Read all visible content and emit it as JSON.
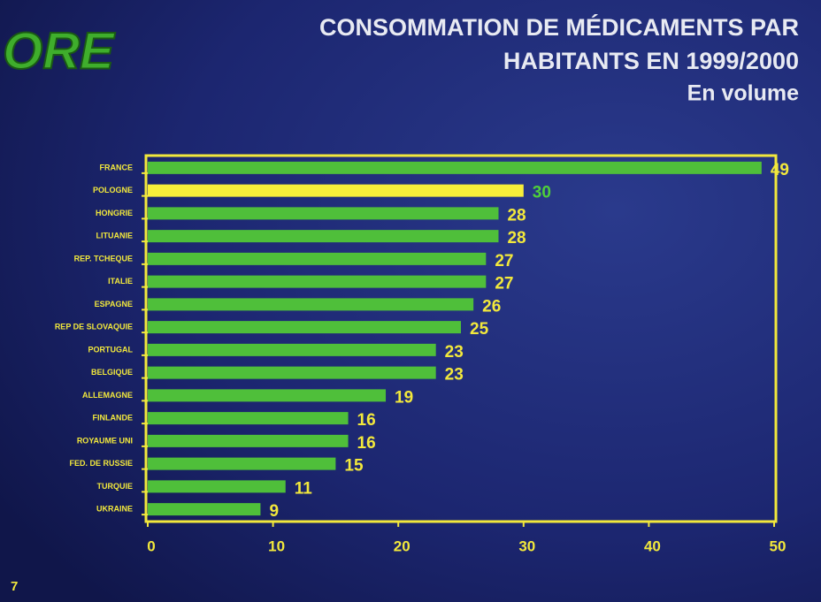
{
  "logo": "ORE",
  "page_number": "7",
  "chart_data": {
    "type": "barh",
    "title": [
      "CONSOMMATION DE MÉDICAMENTS PAR",
      "HABITANTS EN 1999/2000"
    ],
    "subtitle": "En volume",
    "categories": [
      "FRANCE",
      "POLOGNE",
      "HONGRIE",
      "LITUANIE",
      "REP. TCHEQUE",
      "ITALIE",
      "ESPAGNE",
      "REP DE SLOVAQUIE",
      "PORTUGAL",
      "BELGIQUE",
      "ALLEMAGNE",
      "FINLANDE",
      "ROYAUME UNI",
      "FED. DE RUSSIE",
      "TURQUIE",
      "UKRAINE"
    ],
    "values": [
      49,
      30,
      28,
      28,
      27,
      27,
      26,
      25,
      23,
      23,
      19,
      16,
      16,
      15,
      11,
      9
    ],
    "colors": [
      "#4fbf3a",
      "#f7ee3a",
      "#4fbf3a",
      "#4fbf3a",
      "#4fbf3a",
      "#4fbf3a",
      "#4fbf3a",
      "#4fbf3a",
      "#4fbf3a",
      "#4fbf3a",
      "#4fbf3a",
      "#4fbf3a",
      "#4fbf3a",
      "#4fbf3a",
      "#4fbf3a",
      "#4fbf3a"
    ],
    "label_colors": [
      "#f2e83c",
      "#4fcf3a",
      "#f2e83c",
      "#f2e83c",
      "#f2e83c",
      "#f2e83c",
      "#f2e83c",
      "#f2e83c",
      "#f2e83c",
      "#f2e83c",
      "#f2e83c",
      "#f2e83c",
      "#f2e83c",
      "#f2e83c",
      "#f2e83c",
      "#f2e83c"
    ],
    "xlim": [
      0,
      50
    ],
    "xticks": [
      0,
      10,
      20,
      30,
      40,
      50
    ],
    "grid": false
  }
}
